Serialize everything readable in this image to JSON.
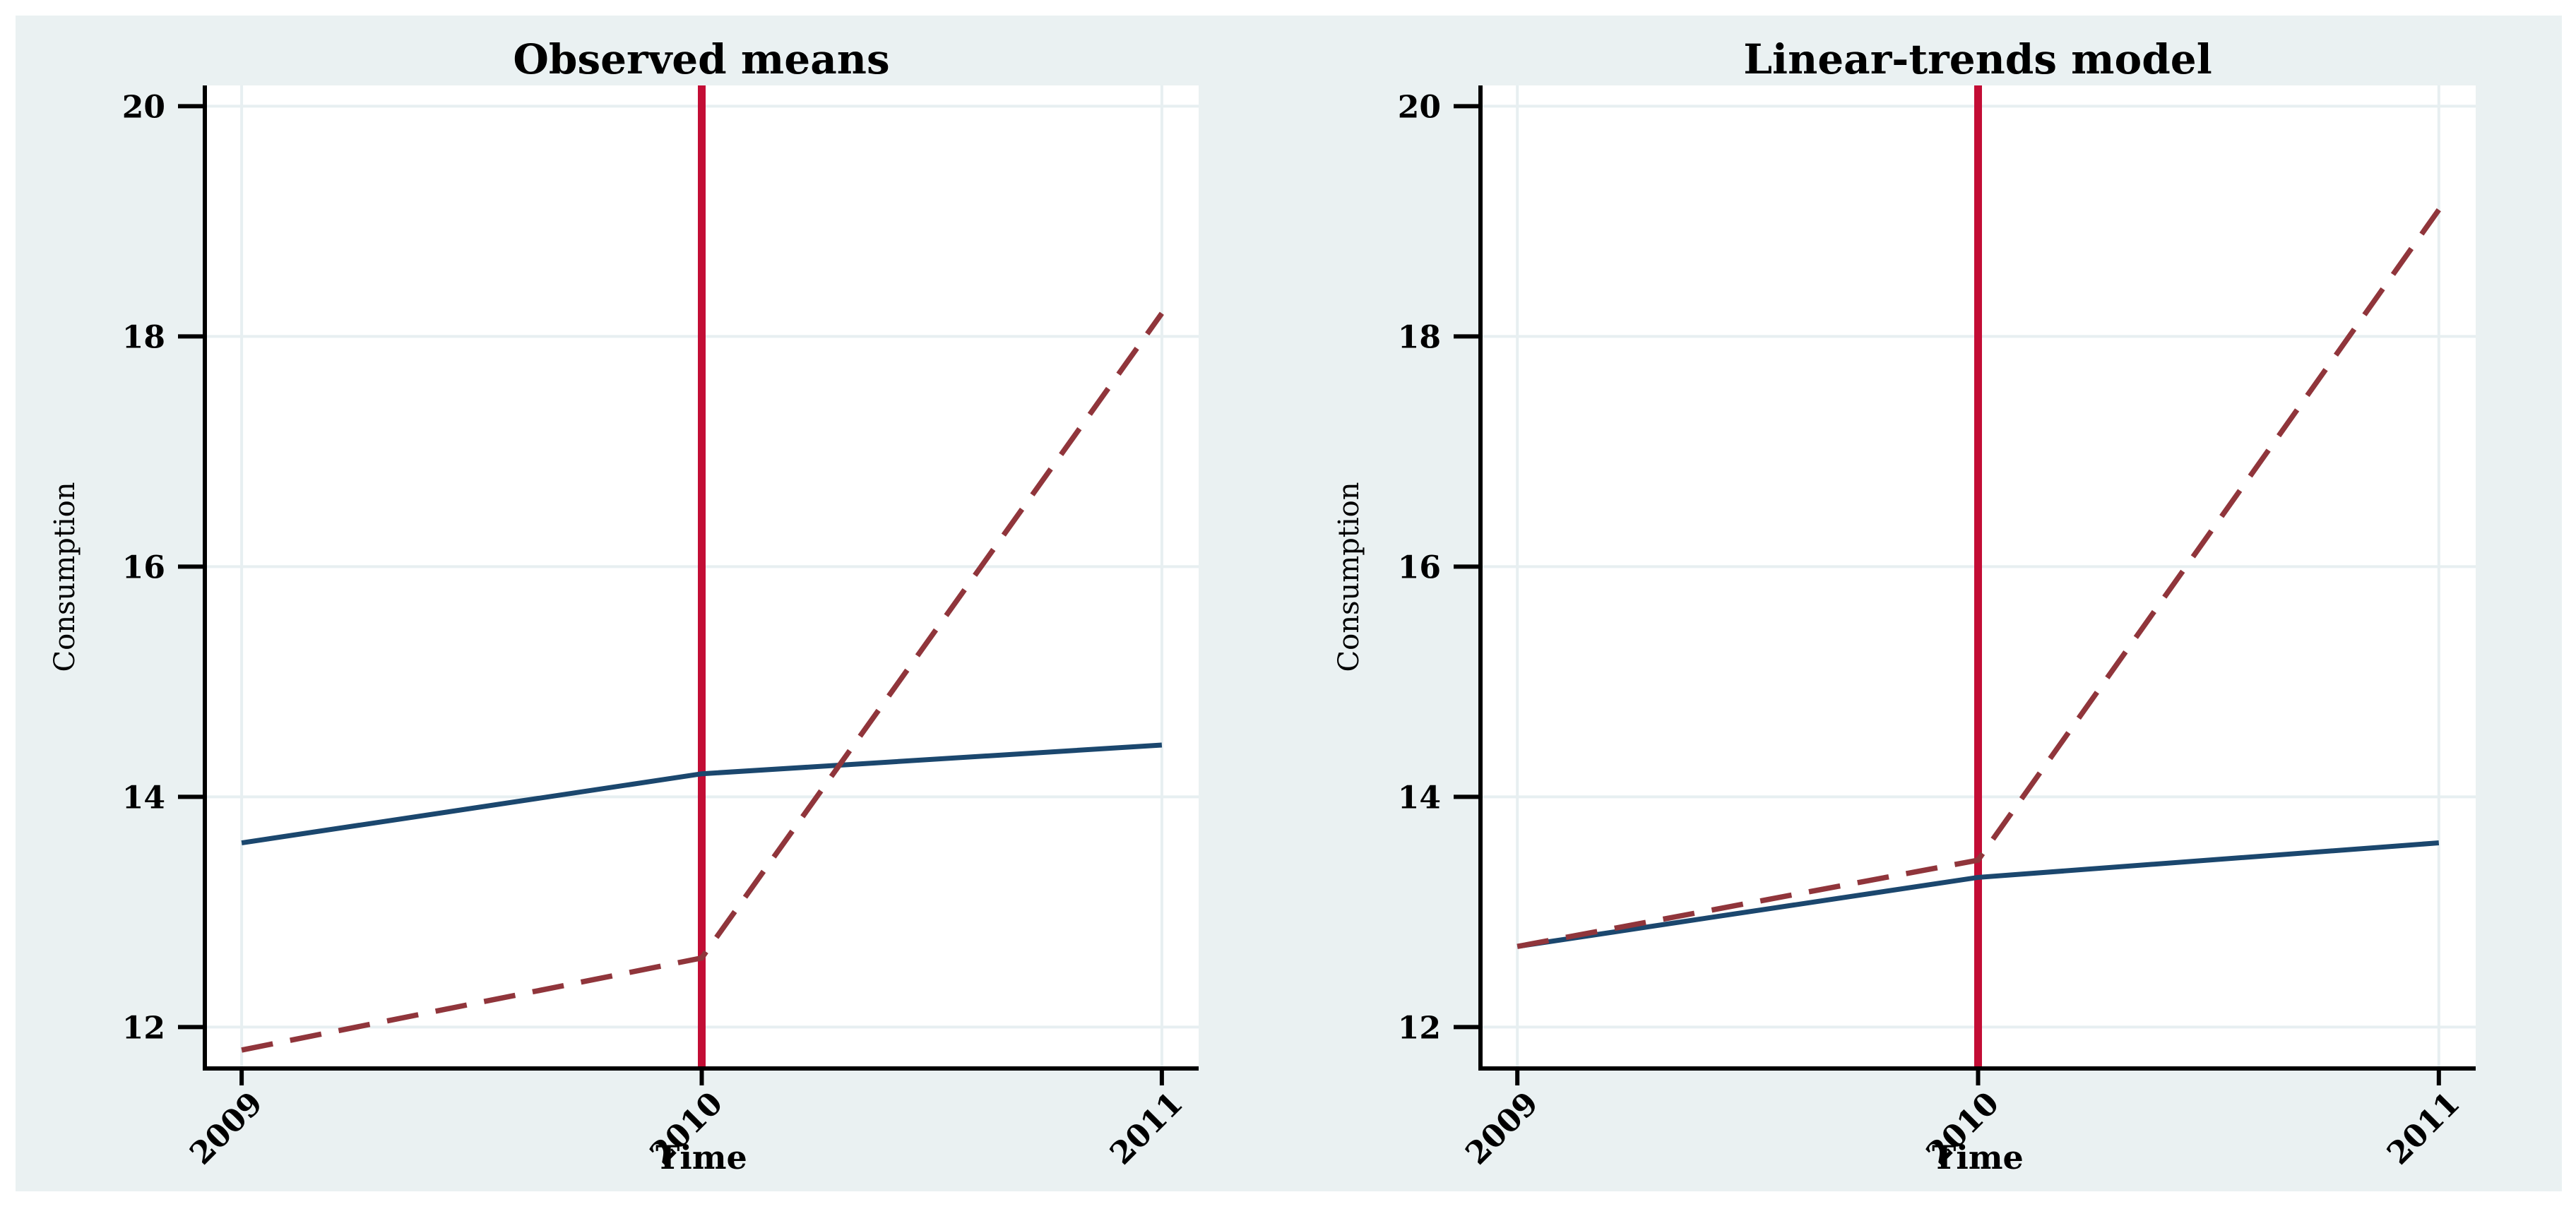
{
  "figure": {
    "canvas_background": "#ffffff",
    "figure_background": "#eaf1f2",
    "plot_background": "#ffffff",
    "grid_color": "#e7eff1",
    "axis_color": "#000000",
    "tick_text_color": "#000000",
    "title_color": "#1e2d53"
  },
  "chart_data": [
    {
      "type": "line",
      "title": "Observed means",
      "xlabel": "Time",
      "ylabel": "Consumption",
      "x": [
        2009,
        2010,
        2011
      ],
      "x_ticklabels": [
        "2009",
        "2010",
        "2011"
      ],
      "yticks": [
        12,
        14,
        16,
        18,
        20
      ],
      "ytick_labels": [
        "12",
        "14",
        "16",
        "18",
        "20"
      ],
      "xlim": [
        2008.92,
        2011.08
      ],
      "ylim": [
        11.64,
        20.18
      ],
      "grid": true,
      "legend": "none",
      "series": [
        {
          "name": "solid-navy-line",
          "style": "solid",
          "color": "#1b476e",
          "values": [
            13.6,
            14.2,
            14.45
          ]
        },
        {
          "name": "dashed-maroon-line",
          "style": "dashed",
          "color": "#90353b",
          "values": [
            11.8,
            12.6,
            18.2
          ]
        }
      ],
      "vline": {
        "x": 2010,
        "color": "#c30d35"
      }
    },
    {
      "type": "line",
      "title": "Linear-trends model",
      "xlabel": "Time",
      "ylabel": "Consumption",
      "x": [
        2009,
        2010,
        2011
      ],
      "x_ticklabels": [
        "2009",
        "2010",
        "2011"
      ],
      "yticks": [
        12,
        14,
        16,
        18,
        20
      ],
      "ytick_labels": [
        "12",
        "14",
        "16",
        "18",
        "20"
      ],
      "xlim": [
        2008.92,
        2011.08
      ],
      "ylim": [
        11.64,
        20.18
      ],
      "grid": true,
      "legend": "none",
      "series": [
        {
          "name": "solid-navy-line",
          "style": "solid",
          "color": "#1b476e",
          "values": [
            12.7,
            13.3,
            13.6
          ]
        },
        {
          "name": "dashed-maroon-line",
          "style": "dashed",
          "color": "#90353b",
          "values": [
            12.7,
            13.45,
            19.1
          ]
        }
      ],
      "vline": {
        "x": 2010,
        "color": "#c30d35"
      }
    }
  ]
}
